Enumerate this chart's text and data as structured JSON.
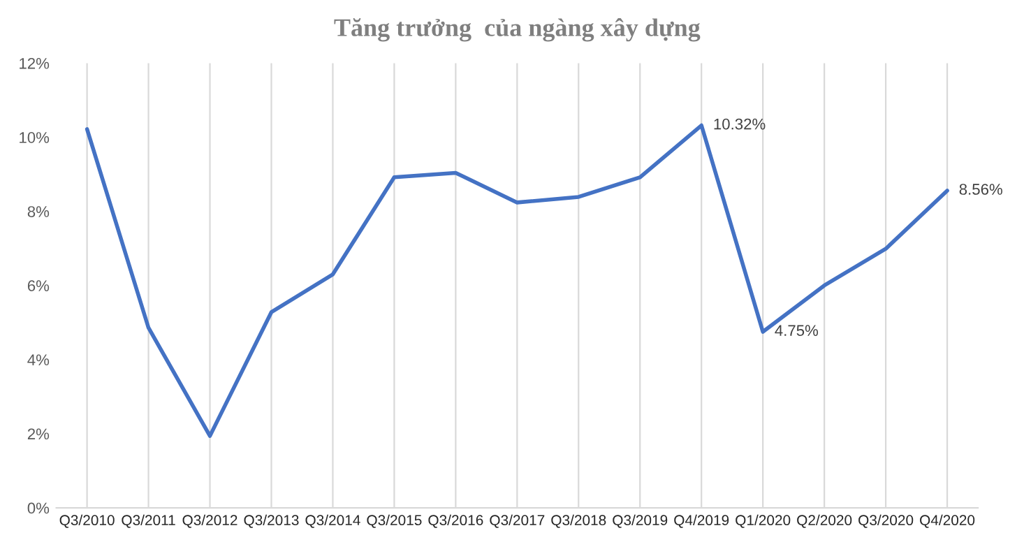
{
  "chart_data": {
    "type": "line",
    "title": "Tăng trưởng  của ngàng xây dựng",
    "categories": [
      "Q3/2010",
      "Q3/2011",
      "Q3/2012",
      "Q3/2013",
      "Q3/2014",
      "Q3/2015",
      "Q3/2016",
      "Q3/2017",
      "Q3/2018",
      "Q3/2019",
      "Q4/2019",
      "Q1/2020",
      "Q2/2020",
      "Q3/2020",
      "Q4/2020"
    ],
    "series": [
      {
        "color": "#4472c4",
        "values": [
          10.22,
          4.86,
          1.94,
          5.28,
          6.3,
          8.92,
          9.04,
          8.24,
          8.39,
          8.92,
          10.32,
          4.75,
          6.0,
          6.99,
          8.56
        ],
        "value_labels": [
          null,
          null,
          null,
          null,
          null,
          null,
          null,
          null,
          null,
          null,
          "10.32%",
          "4.75%",
          null,
          null,
          "8.56%"
        ]
      }
    ],
    "ylim": [
      0,
      12
    ],
    "yticks": [
      {
        "value": 0,
        "label": "0%"
      },
      {
        "value": 2,
        "label": "2%"
      },
      {
        "value": 4,
        "label": "4%"
      },
      {
        "value": 6,
        "label": "6%"
      },
      {
        "value": 8,
        "label": "8%"
      },
      {
        "value": 10,
        "label": "10%"
      },
      {
        "value": 12,
        "label": "12%"
      }
    ],
    "grid": "x",
    "marker": "none",
    "line_style": "solid",
    "legend": false
  }
}
